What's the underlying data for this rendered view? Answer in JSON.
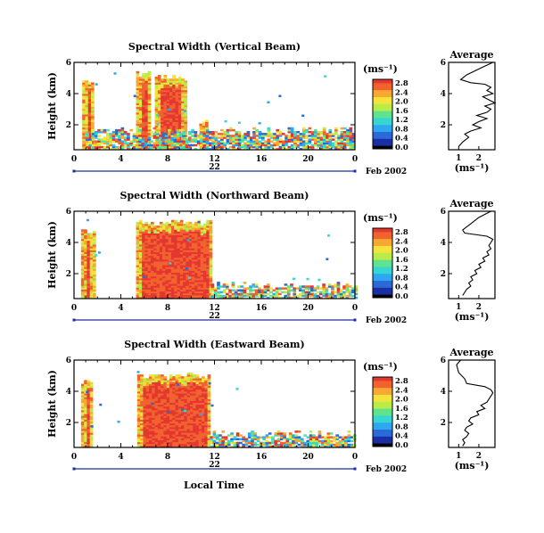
{
  "page": {
    "xlabel": "Local Time"
  },
  "colors": {
    "scale": [
      "#000000",
      "#1b2ea3",
      "#2b6ad8",
      "#2fa6f0",
      "#37d6d2",
      "#5fe38f",
      "#b9ec49",
      "#f3e33a",
      "#f7a833",
      "#f2622f",
      "#e43731"
    ]
  },
  "chart_data": [
    {
      "type": "heatmap",
      "title": "Spectral Width (Vertical Beam)",
      "xlabel": "Local Time",
      "ylabel": "Height (km)",
      "xlim": [
        0,
        24
      ],
      "ylim": [
        0.4,
        6
      ],
      "x_ticks": [
        "0",
        "4",
        "8",
        "12",
        "16",
        "20",
        "0"
      ],
      "y_ticks": [
        "2",
        "4",
        "6"
      ],
      "date_label": "22",
      "month_label": "Feb 2002",
      "colorbar": {
        "unit": "(ms⁻¹)",
        "ticks": [
          "0.0",
          "0.4",
          "0.8",
          "1.2",
          "1.6",
          "2.0",
          "2.4",
          "2.8"
        ]
      },
      "regions": [
        {
          "t0": 0.7,
          "t1": 1.6,
          "h_top": 4.7,
          "level": "high"
        },
        {
          "t0": 5.3,
          "t1": 6.4,
          "h_top": 5.2,
          "level": "high"
        },
        {
          "t0": 6.9,
          "t1": 9.5,
          "h_top": 5.0,
          "level": "high"
        },
        {
          "t0": 10.7,
          "t1": 11.4,
          "h_top": 2.2,
          "level": "high"
        },
        {
          "t0": 1.0,
          "t1": 24,
          "h_top": 1.6,
          "level": "mixed"
        }
      ],
      "average": {
        "title": "Average",
        "xlabel": "(ms⁻¹)",
        "x_ticks": [
          "1",
          "2"
        ],
        "y_ticks": [
          "2",
          "4",
          "6"
        ],
        "xlim": [
          0.5,
          2.8
        ],
        "ylim": [
          0.4,
          6
        ],
        "x": [
          2.7,
          2.2,
          1.4,
          1.1,
          1.6,
          2.3,
          2.6,
          2.4,
          2.7,
          2.2,
          2.5,
          2.8,
          2.3,
          2.6,
          2.4,
          1.9,
          2.4,
          2.0,
          1.7,
          2.1,
          1.6,
          1.3,
          1.5,
          1.2,
          1.0
        ],
        "y": [
          6.0,
          5.7,
          5.2,
          4.9,
          4.7,
          4.6,
          4.4,
          4.2,
          4.0,
          3.8,
          3.6,
          3.4,
          3.2,
          3.0,
          2.8,
          2.6,
          2.4,
          2.2,
          2.0,
          1.8,
          1.6,
          1.4,
          1.2,
          0.9,
          0.6
        ]
      }
    },
    {
      "type": "heatmap",
      "title": "Spectral Width (Northward Beam)",
      "xlabel": "Local Time",
      "ylabel": "Height (km)",
      "xlim": [
        0,
        24
      ],
      "ylim": [
        0.4,
        6
      ],
      "x_ticks": [
        "0",
        "4",
        "8",
        "12",
        "16",
        "20",
        "0"
      ],
      "y_ticks": [
        "2",
        "4",
        "6"
      ],
      "date_label": "22",
      "month_label": "Feb 2002",
      "colorbar": {
        "unit": "(ms⁻¹)",
        "ticks": [
          "0.0",
          "0.4",
          "0.8",
          "1.2",
          "1.6",
          "2.0",
          "2.4",
          "2.8"
        ]
      },
      "regions": [
        {
          "t0": 0.6,
          "t1": 1.7,
          "h_top": 4.6,
          "level": "high"
        },
        {
          "t0": 5.3,
          "t1": 11.7,
          "h_top": 5.2,
          "level": "high"
        },
        {
          "t0": 11.7,
          "t1": 24,
          "h_top": 1.2,
          "level": "mixed"
        }
      ],
      "average": {
        "title": "Average",
        "xlabel": "(ms⁻¹)",
        "x_ticks": [
          "1",
          "2"
        ],
        "y_ticks": [
          "2",
          "4",
          "6"
        ],
        "xlim": [
          0.5,
          2.8
        ],
        "ylim": [
          0.4,
          6
        ],
        "x": [
          2.6,
          2.0,
          1.5,
          1.2,
          1.3,
          2.4,
          2.7,
          2.6,
          2.5,
          2.6,
          2.4,
          2.5,
          2.2,
          2.3,
          2.0,
          2.1,
          1.8,
          1.9,
          1.6,
          1.7,
          1.5,
          1.6,
          1.4,
          1.3,
          1.2
        ],
        "y": [
          6.0,
          5.6,
          5.1,
          4.8,
          4.6,
          4.4,
          4.2,
          4.0,
          3.8,
          3.6,
          3.4,
          3.2,
          3.0,
          2.8,
          2.6,
          2.4,
          2.2,
          2.0,
          1.8,
          1.6,
          1.4,
          1.2,
          1.0,
          0.8,
          0.6
        ]
      }
    },
    {
      "type": "heatmap",
      "title": "Spectral Width (Eastward Beam)",
      "xlabel": "Local Time",
      "ylabel": "Height (km)",
      "xlim": [
        0,
        24
      ],
      "ylim": [
        0.4,
        6
      ],
      "x_ticks": [
        "0",
        "4",
        "8",
        "12",
        "16",
        "20",
        "0"
      ],
      "y_ticks": [
        "2",
        "4",
        "6"
      ],
      "date_label": "22",
      "month_label": "Feb 2002",
      "colorbar": {
        "unit": "(ms⁻¹)",
        "ticks": [
          "0.0",
          "0.4",
          "0.8",
          "1.2",
          "1.6",
          "2.0",
          "2.4",
          "2.8"
        ]
      },
      "regions": [
        {
          "t0": 0.6,
          "t1": 1.6,
          "h_top": 4.6,
          "level": "high"
        },
        {
          "t0": 5.4,
          "t1": 11.6,
          "h_top": 4.9,
          "level": "high"
        },
        {
          "t0": 11.6,
          "t1": 24,
          "h_top": 1.2,
          "level": "mixed"
        }
      ],
      "average": {
        "title": "Average",
        "xlabel": "(ms⁻¹)",
        "x_ticks": [
          "1",
          "2"
        ],
        "y_ticks": [
          "2",
          "4",
          "6"
        ],
        "xlim": [
          0.5,
          2.8
        ],
        "ylim": [
          0.4,
          6
        ],
        "x": [
          1.1,
          0.9,
          1.0,
          1.3,
          1.4,
          2.3,
          2.6,
          2.7,
          2.6,
          2.5,
          2.4,
          2.1,
          2.3,
          1.9,
          2.0,
          1.6,
          1.5,
          1.7,
          1.4,
          1.3,
          1.5,
          1.4,
          1.2,
          1.3,
          1.2
        ],
        "y": [
          6.0,
          5.7,
          5.2,
          4.8,
          4.5,
          4.3,
          4.1,
          3.9,
          3.7,
          3.5,
          3.3,
          3.1,
          2.9,
          2.7,
          2.5,
          2.3,
          2.1,
          1.9,
          1.7,
          1.5,
          1.3,
          1.1,
          0.9,
          0.7,
          0.5
        ]
      }
    }
  ]
}
